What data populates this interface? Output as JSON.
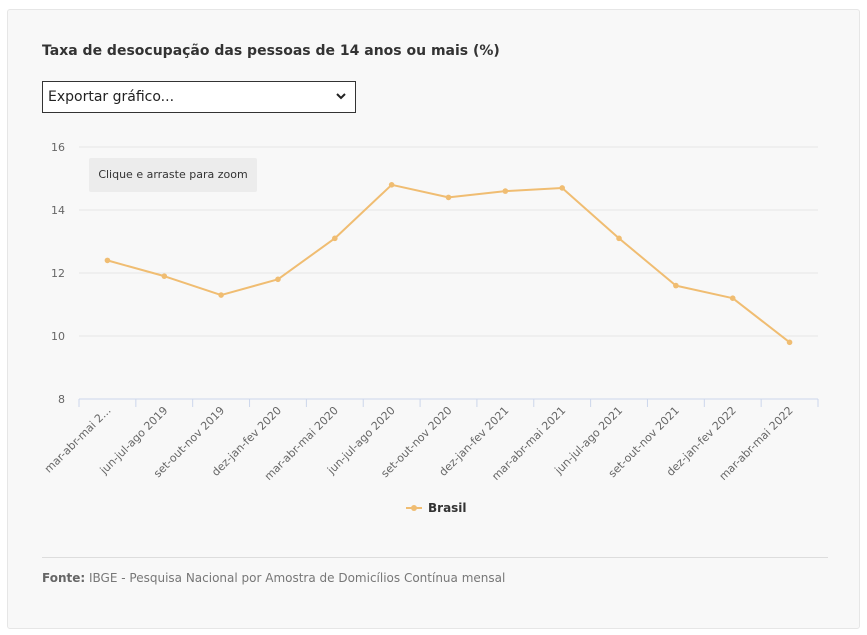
{
  "chart_data": {
    "type": "line",
    "title": "Taxa de desocupação das pessoas de 14 anos ou mais (%)",
    "categories": [
      "mar-abr-mai 2...",
      "jun-jul-ago 2019",
      "set-out-nov 2019",
      "dez-jan-fev 2020",
      "mar-abr-mai 2020",
      "jun-jul-ago 2020",
      "set-out-nov 2020",
      "dez-jan-fev 2021",
      "mar-abr-mai 2021",
      "jun-jul-ago 2021",
      "set-out-nov 2021",
      "dez-jan-fev 2022",
      "mar-abr-mai 2022"
    ],
    "series": [
      {
        "name": "Brasil",
        "color": "#f0bd72",
        "values": [
          12.4,
          11.9,
          11.3,
          11.8,
          13.1,
          14.8,
          14.4,
          14.6,
          14.7,
          13.1,
          11.6,
          11.2,
          9.8
        ]
      }
    ],
    "ylim": [
      8,
      16
    ],
    "yticks": [
      8,
      10,
      12,
      14,
      16
    ],
    "grid": true,
    "legend": "bottom-center"
  },
  "export_select": {
    "label": "Exportar gráfico..."
  },
  "zoom_hint": "Clique e arraste para zoom",
  "source": {
    "label": "Fonte:",
    "text": "IBGE - Pesquisa Nacional por Amostra de Domicílios Contínua mensal"
  }
}
